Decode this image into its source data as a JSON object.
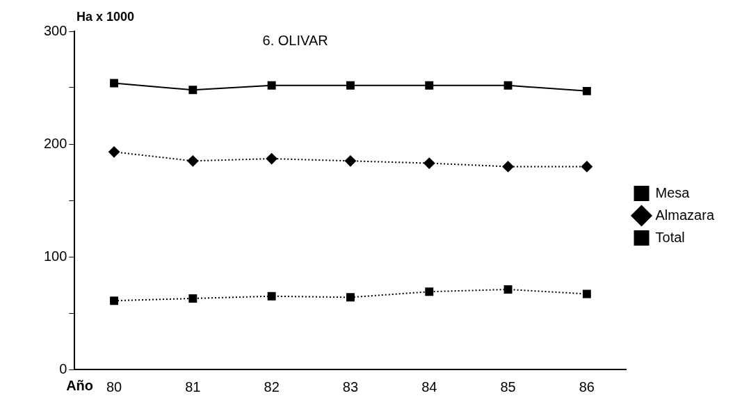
{
  "chart_data": {
    "type": "line",
    "title": "6. OLIVAR",
    "xlabel": "Año",
    "ylabel": "Ha x 1000",
    "categories": [
      "80",
      "81",
      "82",
      "83",
      "84",
      "85",
      "86"
    ],
    "series": [
      {
        "name": "Mesa",
        "color": "#000000",
        "values": [
          61,
          63,
          65,
          64,
          69,
          71,
          67
        ],
        "marker": "square",
        "line_style": "dotted"
      },
      {
        "name": "Almazara",
        "color": "#000000",
        "values": [
          193,
          185,
          187,
          185,
          183,
          180,
          180
        ],
        "marker": "diamond",
        "line_style": "dotted"
      },
      {
        "name": "Total",
        "color": "#000000",
        "values": [
          254,
          248,
          252,
          252,
          252,
          252,
          247
        ],
        "marker": "square",
        "line_style": "solid"
      }
    ],
    "ylim": [
      0,
      300
    ],
    "yticks": [
      0,
      {
        "value": 50,
        "label": null
      },
      100,
      {
        "value": 150,
        "label": null
      },
      200,
      {
        "value": 250,
        "label": null
      },
      300
    ],
    "grid": false,
    "legend": "right"
  }
}
